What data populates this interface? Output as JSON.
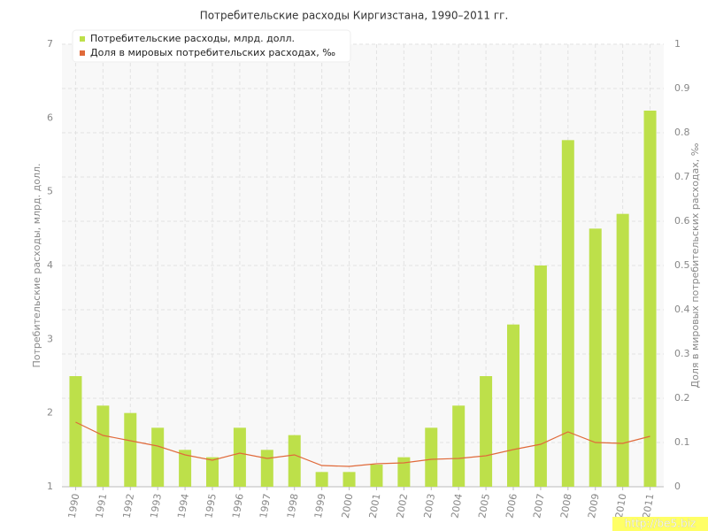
{
  "chart_data": {
    "type": "bar-line",
    "title": "Потребительские расходы Киргизстана, 1990–2011 гг.",
    "y_label": "Потребительские расходы, млрд. долл.",
    "y2_label": "Доля в мировых потребительских расходах, ‰",
    "watermark": "http://be5.biz",
    "categories": [
      "1990",
      "1991",
      "1992",
      "1993",
      "1994",
      "1995",
      "1996",
      "1997",
      "1998",
      "1999",
      "2000",
      "2001",
      "2002",
      "2003",
      "2004",
      "2005",
      "2006",
      "2007",
      "2008",
      "2009",
      "2010",
      "2011"
    ],
    "series": [
      {
        "name": "Потребительские расходы, млрд. долл.",
        "type": "bar",
        "color": "#bde04a",
        "values": [
          2.5,
          2.1,
          2.0,
          1.8,
          1.5,
          1.4,
          1.8,
          1.5,
          1.7,
          1.2,
          1.2,
          1.3,
          1.4,
          1.8,
          2.1,
          2.5,
          3.2,
          4.0,
          5.7,
          4.5,
          4.7,
          6.1
        ]
      },
      {
        "name": "Доля в мировых потребительских расходах, ‰",
        "type": "line",
        "axis": "y2",
        "color": "#e06a3a",
        "values": [
          0.146,
          0.116,
          0.104,
          0.092,
          0.072,
          0.06,
          0.076,
          0.064,
          0.072,
          0.048,
          0.046,
          0.052,
          0.054,
          0.062,
          0.064,
          0.07,
          0.084,
          0.096,
          0.124,
          0.1,
          0.098,
          0.114
        ]
      }
    ],
    "ylim": [
      1,
      7
    ],
    "yticks": [
      1,
      2,
      3,
      4,
      5,
      6,
      7
    ],
    "y2lim": [
      0,
      1
    ],
    "y2ticks": [
      0,
      0.1,
      0.2,
      0.3,
      0.4,
      0.5,
      0.6,
      0.7,
      0.8,
      0.9,
      1
    ],
    "grid": true
  }
}
